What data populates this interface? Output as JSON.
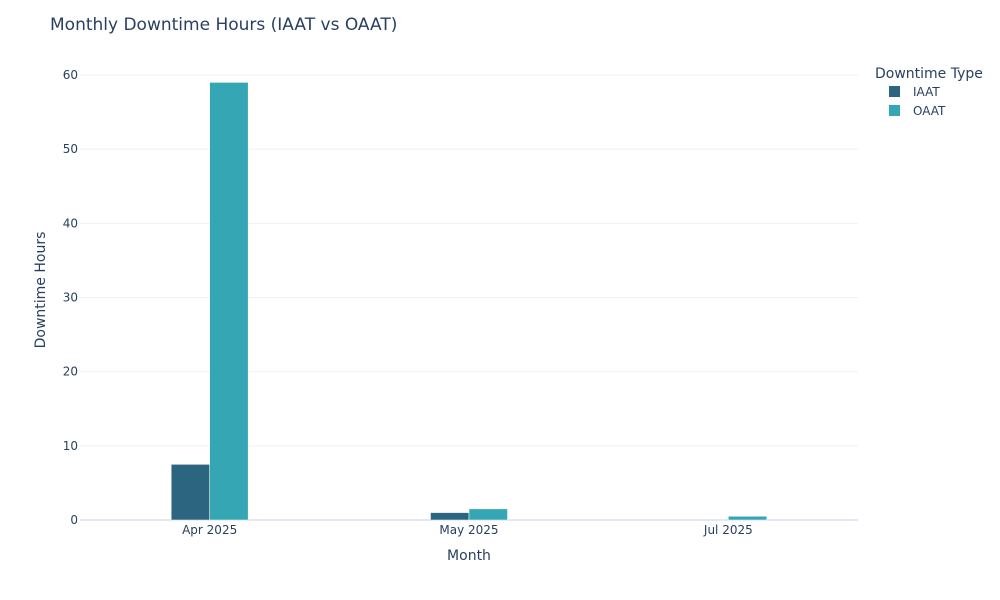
{
  "chart_data": {
    "type": "bar",
    "title": "Monthly Downtime Hours (IAAT vs OAAT)",
    "xlabel": "Month",
    "ylabel": "Downtime Hours",
    "categories": [
      "Apr 2025",
      "May 2025",
      "Jul 2025"
    ],
    "series": [
      {
        "name": "IAAT",
        "values": [
          7.5,
          1.0,
          0
        ],
        "color": "#2b6580"
      },
      {
        "name": "OAAT",
        "values": [
          59.0,
          1.5,
          0.5
        ],
        "color": "#35a6b4"
      }
    ],
    "ylim": [
      0,
      60
    ],
    "yticks": [
      0,
      10,
      20,
      30,
      40,
      50,
      60
    ],
    "grid": true,
    "legend": {
      "title": "Downtime Type",
      "position": "top-right"
    }
  }
}
